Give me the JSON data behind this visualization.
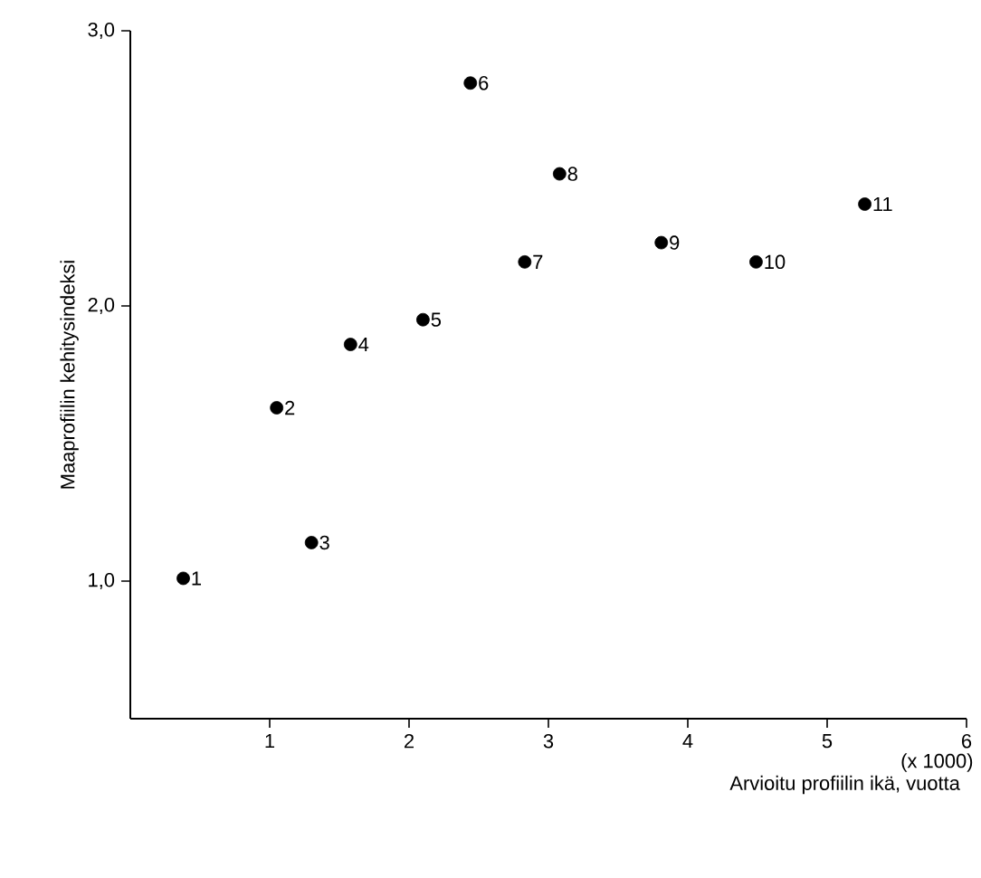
{
  "chart_data": {
    "type": "scatter",
    "xlabel": "Arvioitu profiilin ikä, vuotta",
    "ylabel": "Maaprofiilin kehitysindeksi",
    "x": [
      0.38,
      1.05,
      1.3,
      1.58,
      2.1,
      2.44,
      2.83,
      3.08,
      3.81,
      4.49,
      5.27
    ],
    "values": [
      1.01,
      1.63,
      1.14,
      1.86,
      1.95,
      2.81,
      2.16,
      2.48,
      2.23,
      2.16,
      2.37
    ],
    "color": "#000000",
    "marker": "circle",
    "xlim": [
      0,
      6
    ],
    "ylim": [
      0.5,
      3.0
    ],
    "xticks": [
      1,
      2,
      3,
      4,
      5,
      6
    ],
    "yticks": [
      {
        "value": 1,
        "label": "1,0"
      },
      {
        "value": 2,
        "label": "2,0"
      },
      {
        "value": 3,
        "label": "3,0"
      }
    ],
    "grid": false,
    "annotations": [
      {
        "text": "1",
        "x": 0.38,
        "y": 1.01
      },
      {
        "text": "2",
        "x": 1.05,
        "y": 1.63
      },
      {
        "text": "3",
        "x": 1.3,
        "y": 1.14
      },
      {
        "text": "4",
        "x": 1.58,
        "y": 1.86
      },
      {
        "text": "5",
        "x": 2.1,
        "y": 1.95
      },
      {
        "text": "6",
        "x": 2.44,
        "y": 2.81
      },
      {
        "text": "7",
        "x": 2.83,
        "y": 2.16
      },
      {
        "text": "8",
        "x": 3.08,
        "y": 2.48
      },
      {
        "text": "9",
        "x": 3.81,
        "y": 2.23
      },
      {
        "text": "10",
        "x": 4.49,
        "y": 2.16
      },
      {
        "text": "11",
        "x": 5.27,
        "y": 2.37
      },
      "(x 1000)"
    ]
  }
}
